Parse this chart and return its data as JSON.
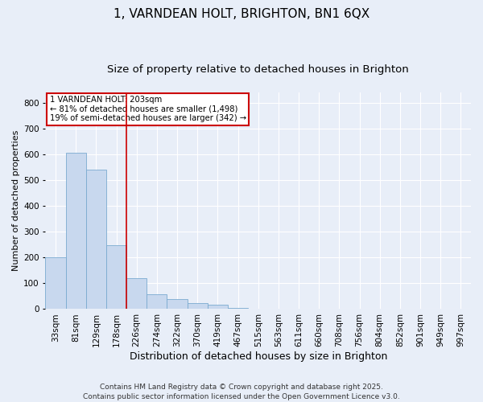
{
  "title": "1, VARNDEAN HOLT, BRIGHTON, BN1 6QX",
  "subtitle": "Size of property relative to detached houses in Brighton",
  "xlabel": "Distribution of detached houses by size in Brighton",
  "ylabel": "Number of detached properties",
  "categories": [
    "33sqm",
    "81sqm",
    "129sqm",
    "178sqm",
    "226sqm",
    "274sqm",
    "322sqm",
    "370sqm",
    "419sqm",
    "467sqm",
    "515sqm",
    "563sqm",
    "611sqm",
    "660sqm",
    "708sqm",
    "756sqm",
    "804sqm",
    "852sqm",
    "901sqm",
    "949sqm",
    "997sqm"
  ],
  "values": [
    200,
    605,
    540,
    248,
    120,
    58,
    38,
    22,
    18,
    5,
    2,
    1,
    1,
    0,
    1,
    0,
    0,
    0,
    0,
    0,
    1
  ],
  "bar_color": "#c8d8ee",
  "bar_edge_color": "#7aaad0",
  "vline_color": "#cc0000",
  "annotation_text": "1 VARNDEAN HOLT: 203sqm\n← 81% of detached houses are smaller (1,498)\n19% of semi-detached houses are larger (342) →",
  "annotation_box_color": "#cc0000",
  "ylim": [
    0,
    840
  ],
  "yticks": [
    0,
    100,
    200,
    300,
    400,
    500,
    600,
    700,
    800
  ],
  "bg_color": "#e8eef8",
  "plot_bg_color": "#e8eef8",
  "grid_color": "#ffffff",
  "title_fontsize": 11,
  "subtitle_fontsize": 9.5,
  "xlabel_fontsize": 9,
  "ylabel_fontsize": 8,
  "tick_fontsize": 7.5,
  "footer_fontsize": 6.5,
  "footer": "Contains HM Land Registry data © Crown copyright and database right 2025.\nContains public sector information licensed under the Open Government Licence v3.0."
}
